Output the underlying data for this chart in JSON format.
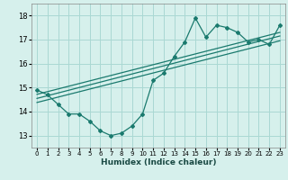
{
  "xlabel": "Humidex (Indice chaleur)",
  "bg_color": "#d6f0ec",
  "grid_color": "#aad8d3",
  "line_color": "#1a7a6e",
  "xlim": [
    -0.5,
    23.5
  ],
  "ylim": [
    12.5,
    18.5
  ],
  "xticks": [
    0,
    1,
    2,
    3,
    4,
    5,
    6,
    7,
    8,
    9,
    10,
    11,
    12,
    13,
    14,
    15,
    16,
    17,
    18,
    19,
    20,
    21,
    22,
    23
  ],
  "yticks": [
    13,
    14,
    15,
    16,
    17,
    18
  ],
  "curve_x": [
    0,
    1,
    2,
    3,
    4,
    5,
    6,
    7,
    8,
    9,
    10,
    11,
    12,
    13,
    14,
    15,
    16,
    17,
    18,
    19,
    20,
    21,
    22,
    23
  ],
  "curve_y": [
    14.9,
    14.7,
    14.3,
    13.9,
    13.9,
    13.6,
    13.2,
    13.0,
    13.1,
    13.4,
    13.9,
    15.3,
    15.6,
    16.3,
    16.9,
    17.9,
    17.1,
    17.6,
    17.5,
    17.3,
    16.9,
    17.0,
    16.8,
    17.6
  ],
  "reg_line1_x": [
    0,
    23
  ],
  "reg_line1_y": [
    14.55,
    17.15
  ],
  "reg_line2_x": [
    0,
    23
  ],
  "reg_line2_y": [
    14.72,
    17.3
  ],
  "reg_line3_x": [
    0,
    23
  ],
  "reg_line3_y": [
    14.38,
    16.95
  ]
}
